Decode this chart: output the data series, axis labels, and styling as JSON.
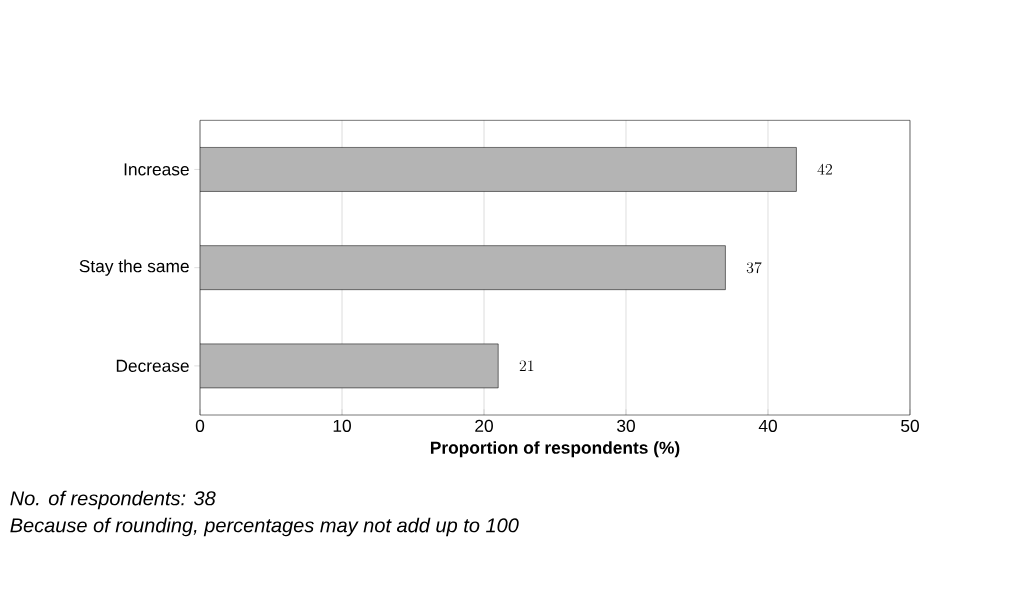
{
  "chart_data": {
    "type": "bar",
    "orientation": "horizontal",
    "categories": [
      "Increase",
      "Stay the same",
      "Decrease"
    ],
    "values": [
      42,
      37,
      21
    ],
    "color": "#b4b4b4",
    "data_labels": true,
    "xlim": [
      0,
      50
    ],
    "xticks": [
      0,
      10,
      20,
      30,
      40,
      50
    ],
    "grid": "x",
    "xlabel": "Proportion of respondents (%)",
    "annotations": [
      "No. of respondents: 38",
      "Because of rounding, percentages may not add up to 100"
    ]
  }
}
